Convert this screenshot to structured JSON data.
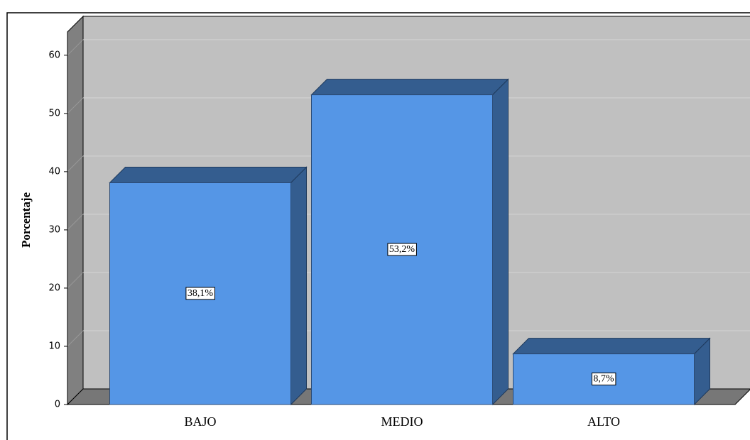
{
  "chart_data": {
    "type": "bar3d",
    "y_label": "Porcentaje",
    "categories": [
      "BAJO",
      "MEDIO",
      "ALTO"
    ],
    "values": [
      38.1,
      53.2,
      8.7
    ],
    "value_labels": [
      "38,1%",
      "53,2%",
      "8,7%"
    ],
    "color": "#5596e6",
    "shade_color": "#345d8f",
    "ylim": [
      0,
      64
    ],
    "yticks": [
      0,
      10,
      20,
      30,
      40,
      50,
      60
    ],
    "grid": true
  }
}
